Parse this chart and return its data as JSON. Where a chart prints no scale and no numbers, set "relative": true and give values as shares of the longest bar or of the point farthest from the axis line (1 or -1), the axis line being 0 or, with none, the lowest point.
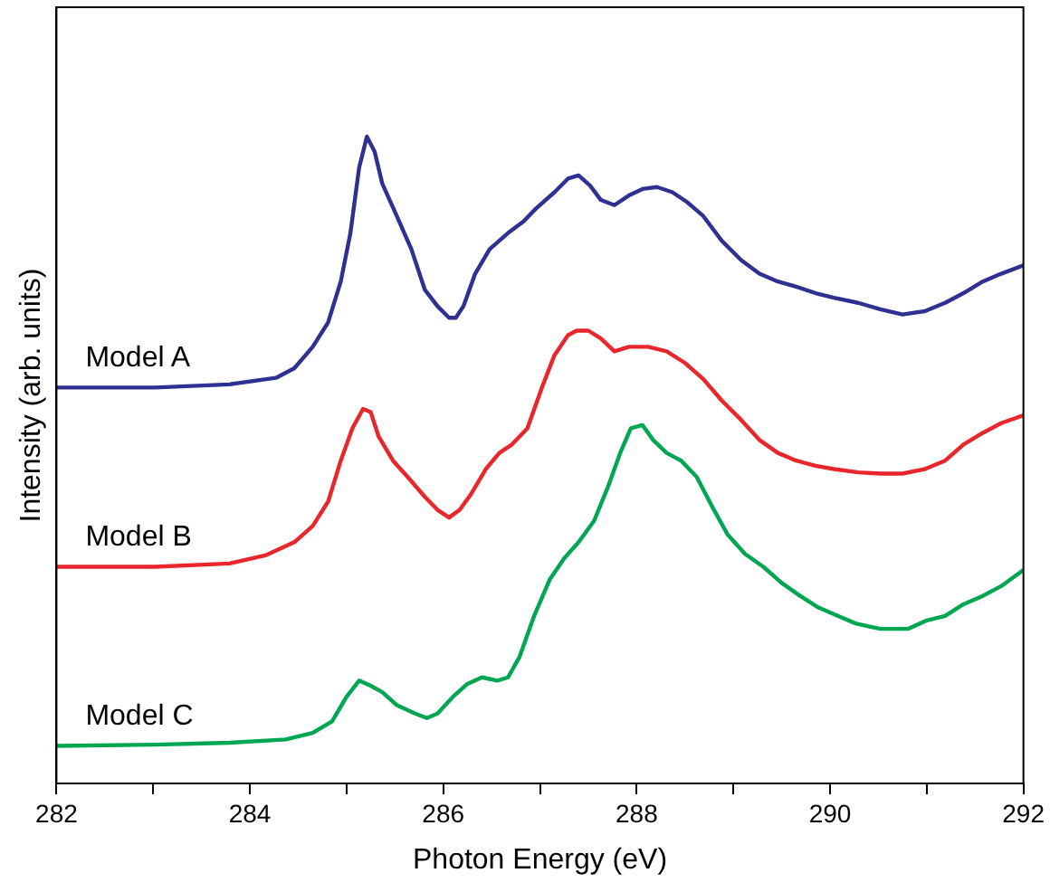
{
  "chart_data": {
    "type": "line",
    "relative": true,
    "xlabel": "Photon Energy (eV)",
    "ylabel": "Intensity (arb. units)",
    "xlim": [
      282,
      292
    ],
    "xticks": [
      282,
      {
        "value": 283,
        "label": null
      },
      284,
      {
        "value": 285,
        "label": null
      },
      286,
      {
        "value": 287,
        "label": null
      },
      288,
      {
        "value": 289,
        "label": null
      },
      290,
      {
        "value": 291,
        "label": null
      },
      292
    ],
    "grid": false,
    "legend": false,
    "tick_labels": "x",
    "marker": "none",
    "line_style": "solid",
    "series": [
      {
        "name": "Model A",
        "color": "#2e3192",
        "x": [
          282.0,
          283.02,
          283.79,
          284.27,
          284.46,
          284.65,
          284.81,
          284.94,
          285.04,
          285.13,
          285.21,
          285.29,
          285.37,
          285.52,
          285.67,
          285.81,
          285.94,
          286.06,
          286.13,
          286.21,
          286.33,
          286.48,
          286.67,
          286.83,
          286.96,
          287.15,
          287.29,
          287.4,
          287.52,
          287.63,
          287.77,
          287.92,
          288.06,
          288.21,
          288.37,
          288.52,
          288.69,
          288.88,
          289.08,
          289.27,
          289.46,
          289.65,
          289.85,
          290.04,
          290.29,
          290.52,
          290.75,
          290.98,
          291.19,
          291.38,
          291.58,
          291.77,
          292.0
        ],
        "values": [
          0.612,
          0.612,
          0.617,
          0.627,
          0.642,
          0.675,
          0.713,
          0.776,
          0.851,
          0.952,
          1,
          0.977,
          0.927,
          0.877,
          0.826,
          0.763,
          0.738,
          0.72,
          0.72,
          0.738,
          0.788,
          0.826,
          0.851,
          0.869,
          0.889,
          0.914,
          0.935,
          0.94,
          0.924,
          0.902,
          0.894,
          0.909,
          0.919,
          0.922,
          0.914,
          0.899,
          0.877,
          0.839,
          0.809,
          0.788,
          0.776,
          0.768,
          0.758,
          0.751,
          0.743,
          0.733,
          0.725,
          0.73,
          0.743,
          0.758,
          0.776,
          0.788,
          0.801
        ]
      },
      {
        "name": "Model B",
        "color": "#e8262b",
        "x": [
          282.0,
          283.02,
          283.79,
          284.17,
          284.46,
          284.65,
          284.81,
          284.94,
          285.06,
          285.17,
          285.25,
          285.33,
          285.48,
          285.63,
          285.81,
          285.94,
          286.06,
          286.17,
          286.29,
          286.44,
          286.58,
          286.71,
          286.87,
          287.02,
          287.15,
          287.29,
          287.38,
          287.5,
          287.63,
          287.77,
          287.92,
          288.12,
          288.31,
          288.5,
          288.69,
          288.88,
          289.08,
          289.27,
          289.46,
          289.65,
          289.85,
          290.04,
          290.29,
          290.52,
          290.75,
          290.98,
          291.19,
          291.38,
          291.58,
          291.77,
          292.0
        ],
        "values": [
          0.335,
          0.335,
          0.34,
          0.353,
          0.373,
          0.398,
          0.436,
          0.499,
          0.549,
          0.579,
          0.574,
          0.537,
          0.499,
          0.474,
          0.443,
          0.423,
          0.411,
          0.423,
          0.448,
          0.486,
          0.511,
          0.524,
          0.549,
          0.612,
          0.662,
          0.693,
          0.7,
          0.7,
          0.688,
          0.668,
          0.675,
          0.675,
          0.668,
          0.65,
          0.625,
          0.592,
          0.562,
          0.531,
          0.511,
          0.499,
          0.491,
          0.486,
          0.481,
          0.479,
          0.479,
          0.486,
          0.499,
          0.524,
          0.542,
          0.557,
          0.569
        ]
      },
      {
        "name": "Model C",
        "color": "#00a651",
        "x": [
          282.0,
          283.02,
          283.79,
          284.37,
          284.65,
          284.85,
          285.0,
          285.13,
          285.25,
          285.37,
          285.52,
          285.71,
          285.83,
          285.94,
          286.1,
          286.25,
          286.4,
          286.56,
          286.67,
          286.79,
          286.94,
          287.1,
          287.25,
          287.4,
          287.56,
          287.71,
          287.83,
          287.94,
          288.06,
          288.17,
          288.31,
          288.46,
          288.62,
          288.77,
          288.94,
          289.12,
          289.31,
          289.5,
          289.69,
          289.88,
          290.08,
          290.27,
          290.52,
          290.81,
          291.0,
          291.19,
          291.38,
          291.58,
          291.77,
          292.0
        ],
        "values": [
          0.058,
          0.06,
          0.063,
          0.068,
          0.078,
          0.096,
          0.134,
          0.159,
          0.151,
          0.141,
          0.121,
          0.108,
          0.101,
          0.108,
          0.134,
          0.154,
          0.164,
          0.159,
          0.164,
          0.196,
          0.259,
          0.315,
          0.348,
          0.373,
          0.406,
          0.461,
          0.511,
          0.549,
          0.554,
          0.531,
          0.511,
          0.499,
          0.474,
          0.431,
          0.385,
          0.355,
          0.335,
          0.31,
          0.29,
          0.272,
          0.259,
          0.247,
          0.239,
          0.239,
          0.252,
          0.259,
          0.277,
          0.29,
          0.305,
          0.33
        ]
      }
    ]
  }
}
